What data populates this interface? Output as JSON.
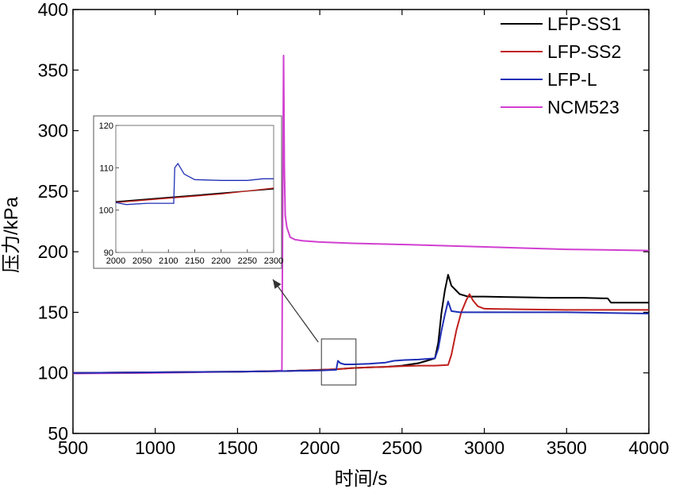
{
  "chart_data": {
    "type": "line",
    "title": "",
    "xlabel": "时间/s",
    "ylabel": "压力/kPa",
    "xlim": [
      500,
      4000
    ],
    "ylim": [
      50,
      400
    ],
    "xticks": [
      "500",
      "1000",
      "1500",
      "2000",
      "2500",
      "3000",
      "3500",
      "4000"
    ],
    "yticks": [
      "50",
      "100",
      "150",
      "200",
      "250",
      "300",
      "350",
      "400"
    ],
    "legend_position": "top-right",
    "series": [
      {
        "name": "LFP-SS1",
        "color": "#000000",
        "x": [
          500,
          1000,
          1500,
          1800,
          2000,
          2100,
          2200,
          2300,
          2400,
          2500,
          2600,
          2650,
          2700,
          2720,
          2740,
          2760,
          2780,
          2800,
          2850,
          2900,
          3000,
          3200,
          3400,
          3600,
          3750,
          3770,
          3800,
          4000
        ],
        "y": [
          100,
          100.5,
          101,
          101.5,
          102.5,
          103,
          104,
          104.5,
          105,
          106,
          108,
          110,
          112,
          125,
          150,
          168,
          181,
          172,
          165,
          163,
          163,
          162.5,
          162,
          162,
          161.5,
          158,
          158,
          158
        ]
      },
      {
        "name": "LFP-SS2",
        "color": "#c0201c",
        "x": [
          500,
          1000,
          1500,
          1800,
          2000,
          2100,
          2200,
          2300,
          2400,
          2500,
          2600,
          2700,
          2780,
          2800,
          2830,
          2860,
          2890,
          2910,
          2930,
          2960,
          3000,
          3200,
          3500,
          4000
        ],
        "y": [
          100,
          100.5,
          101,
          101.5,
          102.5,
          103,
          104,
          104.5,
          105,
          105.5,
          106,
          106,
          106.5,
          115,
          135,
          150,
          160,
          165,
          160,
          155,
          153,
          152.5,
          152,
          152
        ]
      },
      {
        "name": "LFP-L",
        "color": "#1f2fb5",
        "x": [
          500,
          1000,
          1500,
          1800,
          2000,
          2100,
          2110,
          2125,
          2150,
          2200,
          2300,
          2400,
          2450,
          2500,
          2600,
          2700,
          2720,
          2740,
          2760,
          2780,
          2800,
          2850,
          3000,
          3500,
          4000
        ],
        "y": [
          100,
          100.5,
          101,
          101.5,
          102,
          102.5,
          110,
          108,
          107,
          107,
          107.5,
          108.5,
          110,
          110.5,
          111,
          112,
          120,
          135,
          148,
          159,
          151,
          150,
          150,
          150,
          149
        ]
      },
      {
        "name": "NCM523",
        "color": "#d13fd1",
        "x": [
          500,
          1000,
          1500,
          1700,
          1770,
          1775,
          1780,
          1785,
          1790,
          1800,
          1820,
          1850,
          1900,
          2000,
          2200,
          2500,
          3000,
          3500,
          4000
        ],
        "y": [
          99.5,
          100,
          101,
          101.5,
          102,
          250,
          362,
          270,
          230,
          220,
          212,
          210,
          209,
          208,
          207,
          206,
          204,
          202,
          201
        ]
      }
    ],
    "inset": {
      "xlim": [
        2000,
        2300
      ],
      "ylim": [
        90,
        120
      ],
      "xticks": [
        "2000",
        "2050",
        "2100",
        "2150",
        "2200",
        "2250",
        "2300"
      ],
      "yticks": [
        "90",
        "100",
        "110",
        "120"
      ],
      "zoom_box": {
        "x": [
          2010,
          2220
        ],
        "y": [
          90,
          128
        ]
      },
      "series": [
        {
          "name": "LFP-SS1",
          "color": "#000000",
          "x": [
            2000,
            2100,
            2200,
            2300
          ],
          "y": [
            102,
            103,
            104,
            105
          ]
        },
        {
          "name": "LFP-SS2",
          "color": "#c0201c",
          "x": [
            2000,
            2100,
            2200,
            2300
          ],
          "y": [
            101.8,
            102.8,
            103.8,
            105.2
          ]
        },
        {
          "name": "LFP-L",
          "color": "#1f2fb5",
          "x": [
            2000,
            2020,
            2060,
            2110,
            2112,
            2118,
            2130,
            2150,
            2200,
            2250,
            2280,
            2300
          ],
          "y": [
            101.8,
            101.3,
            101.6,
            101.6,
            110,
            111,
            108.5,
            107.2,
            107,
            107,
            107.4,
            107.4
          ]
        }
      ]
    }
  }
}
